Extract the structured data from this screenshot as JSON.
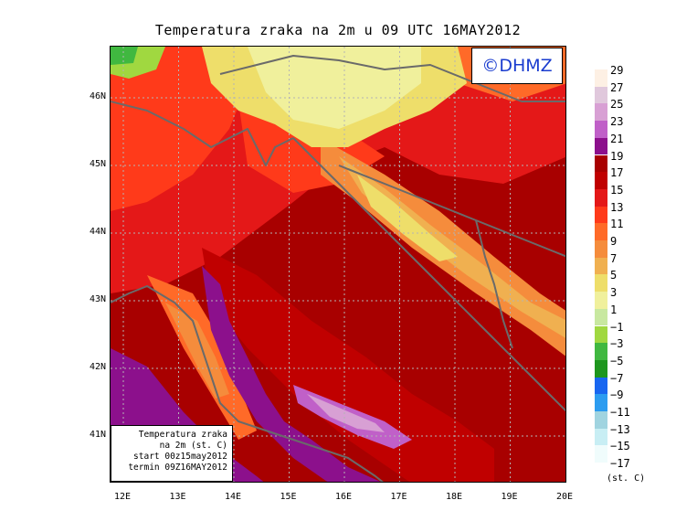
{
  "title": "Temperatura zraka na 2m u 09 UTC 16MAY2012",
  "logo_text": "©DHMZ",
  "info_box": {
    "line1": "Temperatura zraka",
    "line2": "na 2m (st. C)",
    "line3": "start 00z15may2012",
    "line4": "termin 09Z16MAY2012"
  },
  "lat_labels": [
    "46N",
    "45N",
    "44N",
    "43N",
    "42N",
    "41N"
  ],
  "lon_labels": [
    "12E",
    "13E",
    "14E",
    "15E",
    "16E",
    "17E",
    "18E",
    "19E",
    "20E"
  ],
  "legend": {
    "units": "(st. C)",
    "labels": [
      "29",
      "27",
      "25",
      "23",
      "21",
      "19",
      "17",
      "15",
      "13",
      "11",
      "9",
      "7",
      "5",
      "3",
      "1",
      "−1",
      "−3",
      "−5",
      "−7",
      "−9",
      "−11",
      "−13",
      "−15",
      "−17"
    ],
    "colors": [
      "#fdf0e4",
      "#e0c8dc",
      "#d8a0d4",
      "#c060c8",
      "#8c108c",
      "#a80000",
      "#c00000",
      "#e41818",
      "#ff3a1a",
      "#ff6a28",
      "#f58c3c",
      "#f0b050",
      "#eede6a",
      "#f0f09c",
      "#c8e8a0",
      "#a0d840",
      "#40b840",
      "#1e961e",
      "#1866f0",
      "#2c9cf0",
      "#a0d4e0",
      "#c8eef4",
      "#f0fcfc"
    ]
  },
  "map": {
    "frame_color": "#000000",
    "coast_color": "#6a6a6a",
    "grid_color": "#b4b4b4"
  }
}
